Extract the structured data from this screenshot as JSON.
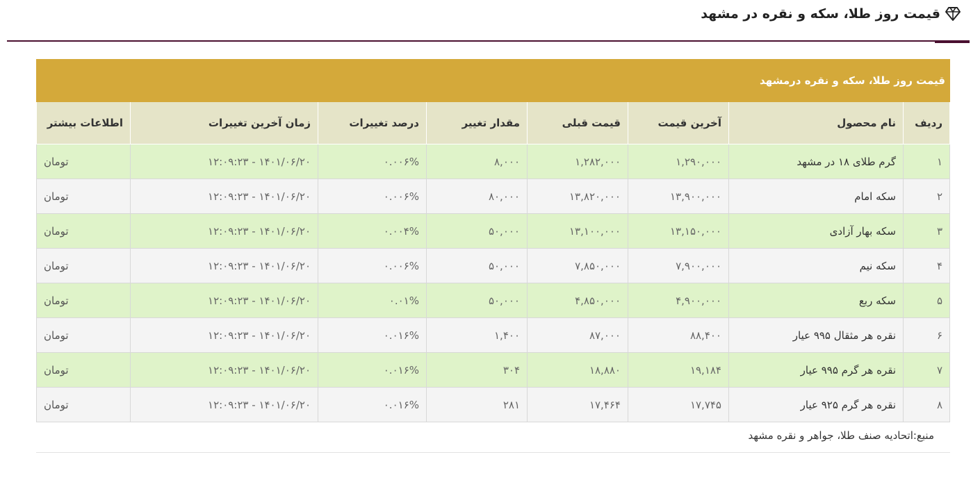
{
  "header": {
    "title": "قیمت روز طلا، سکه و نقره در مشهد",
    "icon": "gem-icon"
  },
  "table": {
    "caption": "قیمت روز طلا، سکه و نقره درمشهد",
    "columns": [
      "ردیف",
      "نام محصول",
      "آخرین قیمت",
      "قیمت قبلی",
      "مقدار تغییر",
      "درصد تغییرات",
      "زمان آخرین تغییرات",
      "اطلاعات بیشتر"
    ],
    "rows": [
      {
        "rank": "۱",
        "name": "گرم طلای ۱۸ در مشهد",
        "last": "۱,۲۹۰,۰۰۰",
        "prev": "۱,۲۸۲,۰۰۰",
        "change": "۸,۰۰۰",
        "percent": "۰.۰۰۶%",
        "time": "۱۴۰۱/۰۶/۲۰ - ۱۲:۰۹:۲۳",
        "unit": "تومان"
      },
      {
        "rank": "۲",
        "name": "سکه امام",
        "last": "۱۳,۹۰۰,۰۰۰",
        "prev": "۱۳,۸۲۰,۰۰۰",
        "change": "۸۰,۰۰۰",
        "percent": "۰.۰۰۶%",
        "time": "۱۴۰۱/۰۶/۲۰ - ۱۲:۰۹:۲۳",
        "unit": "تومان"
      },
      {
        "rank": "۳",
        "name": "سکه بهار آزادی",
        "last": "۱۳,۱۵۰,۰۰۰",
        "prev": "۱۳,۱۰۰,۰۰۰",
        "change": "۵۰,۰۰۰",
        "percent": "۰.۰۰۴%",
        "time": "۱۴۰۱/۰۶/۲۰ - ۱۲:۰۹:۲۳",
        "unit": "تومان"
      },
      {
        "rank": "۴",
        "name": "سکه نیم",
        "last": "۷,۹۰۰,۰۰۰",
        "prev": "۷,۸۵۰,۰۰۰",
        "change": "۵۰,۰۰۰",
        "percent": "۰.۰۰۶%",
        "time": "۱۴۰۱/۰۶/۲۰ - ۱۲:۰۹:۲۳",
        "unit": "تومان"
      },
      {
        "rank": "۵",
        "name": "سکه ربع",
        "last": "۴,۹۰۰,۰۰۰",
        "prev": "۴,۸۵۰,۰۰۰",
        "change": "۵۰,۰۰۰",
        "percent": "۰.۰۱%",
        "time": "۱۴۰۱/۰۶/۲۰ - ۱۲:۰۹:۲۳",
        "unit": "تومان"
      },
      {
        "rank": "۶",
        "name": "نقره هر مثقال ۹۹۵ عیار",
        "last": "۸۸,۴۰۰",
        "prev": "۸۷,۰۰۰",
        "change": "۱,۴۰۰",
        "percent": "۰.۰۱۶%",
        "time": "۱۴۰۱/۰۶/۲۰ - ۱۲:۰۹:۲۳",
        "unit": "تومان"
      },
      {
        "rank": "۷",
        "name": "نقره هر گرم ۹۹۵ عیار",
        "last": "۱۹,۱۸۴",
        "prev": "۱۸,۸۸۰",
        "change": "۳۰۴",
        "percent": "۰.۰۱۶%",
        "time": "۱۴۰۱/۰۶/۲۰ - ۱۲:۰۹:۲۳",
        "unit": "تومان"
      },
      {
        "rank": "۸",
        "name": "نقره هر گرم ۹۲۵ عیار",
        "last": "۱۷,۷۴۵",
        "prev": "۱۷,۴۶۴",
        "change": "۲۸۱",
        "percent": "۰.۰۱۶%",
        "time": "۱۴۰۱/۰۶/۲۰ - ۱۲:۰۹:۲۳",
        "unit": "تومان"
      }
    ]
  },
  "footer": {
    "source": "منبع:اتحادیه صنف طلا، جواهر و نقره مشهد"
  },
  "colors": {
    "caption_bg": "#d4a93a",
    "header_bg": "#e5e4c8",
    "row_odd": "#dff3c9",
    "row_even": "#f4f4f4",
    "accent_line": "#4a1030"
  }
}
